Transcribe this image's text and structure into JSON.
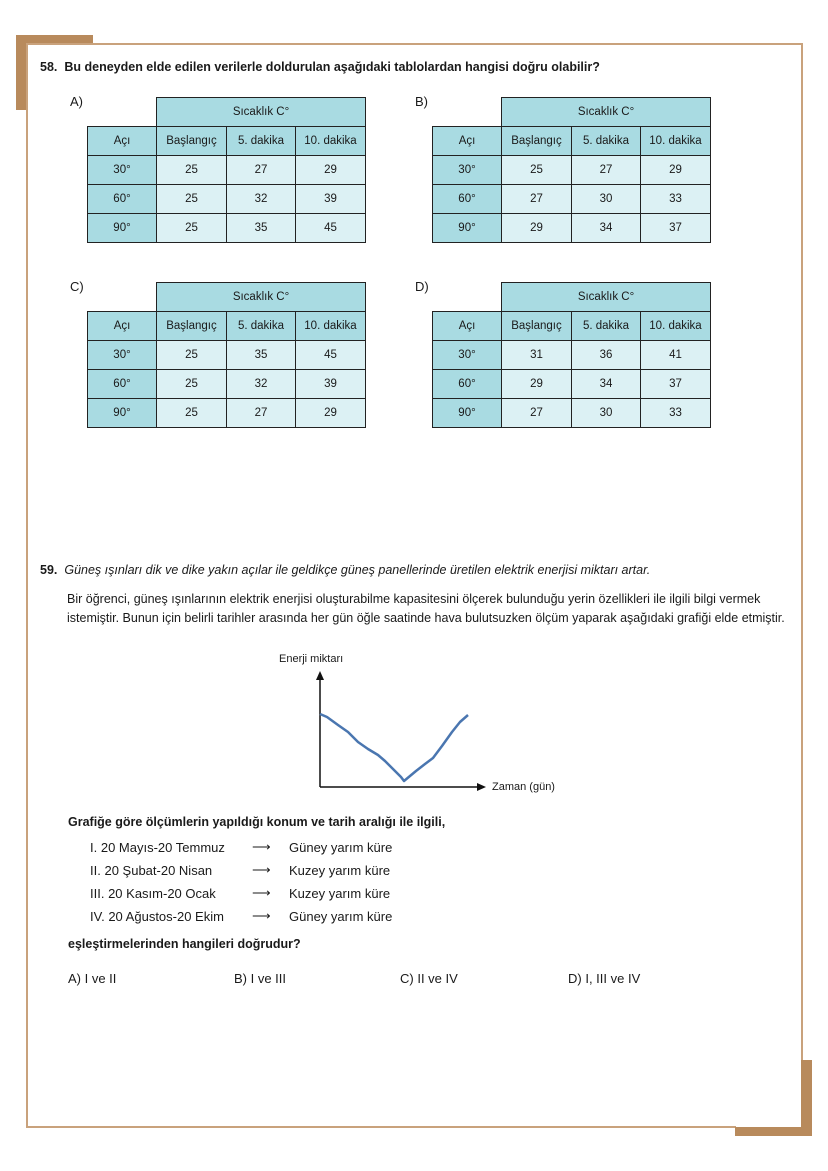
{
  "q58": {
    "number": "58.",
    "text": "Bu deneyden elde edilen verilerle doldurulan aşağıdaki tablolardan hangisi doğru olabilir?",
    "tables": [
      {
        "label": "A)",
        "header": "Sıcaklık C°",
        "cols": [
          "Açı",
          "Başlangıç",
          "5. dakika",
          "10. dakika"
        ],
        "rows": [
          [
            "30°",
            "25",
            "27",
            "29"
          ],
          [
            "60°",
            "25",
            "32",
            "39"
          ],
          [
            "90°",
            "25",
            "35",
            "45"
          ]
        ]
      },
      {
        "label": "B)",
        "header": "Sıcaklık C°",
        "cols": [
          "Açı",
          "Başlangıç",
          "5. dakika",
          "10. dakika"
        ],
        "rows": [
          [
            "30°",
            "25",
            "27",
            "29"
          ],
          [
            "60°",
            "27",
            "30",
            "33"
          ],
          [
            "90°",
            "29",
            "34",
            "37"
          ]
        ]
      },
      {
        "label": "C)",
        "header": "Sıcaklık C°",
        "cols": [
          "Açı",
          "Başlangıç",
          "5. dakika",
          "10. dakika"
        ],
        "rows": [
          [
            "30°",
            "25",
            "35",
            "45"
          ],
          [
            "60°",
            "25",
            "32",
            "39"
          ],
          [
            "90°",
            "25",
            "27",
            "29"
          ]
        ]
      },
      {
        "label": "D)",
        "header": "Sıcaklık C°",
        "cols": [
          "Açı",
          "Başlangıç",
          "5. dakika",
          "10. dakika"
        ],
        "rows": [
          [
            "30°",
            "31",
            "36",
            "41"
          ],
          [
            "60°",
            "29",
            "34",
            "37"
          ],
          [
            "90°",
            "27",
            "30",
            "33"
          ]
        ]
      }
    ]
  },
  "q59": {
    "number": "59.",
    "premise": "Güneş ışınları dik ve dike yakın açılar ile geldikçe güneş panellerinde üretilen elektrik enerjisi miktarı artar.",
    "body": "Bir öğrenci, güneş ışınlarının elektrik enerjisi oluşturabilme kapasitesini ölçerek bulunduğu yerin özellikleri ile ilgili bilgi vermek istemiştir. Bunun için belirli tarihler arasında her gün öğle saatinde hava bulutsuzken ölçüm yaparak aşağıdaki grafiği elde etmiştir.",
    "graph": {
      "ylabel": "Enerji miktarı",
      "xlabel": "Zaman (gün)"
    },
    "lead": "Grafiğe göre ölçümlerin yapıldığı konum ve tarih aralığı ile ilgili,",
    "items": [
      {
        "num": "I.",
        "dates": "20 Mayıs-20 Temmuz",
        "arrow": "⟶",
        "hemisphere": "Güney yarım küre"
      },
      {
        "num": "II.",
        "dates": "20 Şubat-20 Nisan",
        "arrow": "⟶",
        "hemisphere": "Kuzey yarım küre"
      },
      {
        "num": "III.",
        "dates": "20 Kasım-20 Ocak",
        "arrow": "⟶",
        "hemisphere": "Kuzey yarım küre"
      },
      {
        "num": "IV.",
        "dates": "20 Ağustos-20 Ekim",
        "arrow": "⟶",
        "hemisphere": "Güney yarım küre"
      }
    ],
    "question": "eşleştirmelerinden hangileri doğrudur?",
    "options": [
      "A) I ve II",
      "B) I ve III",
      "C) II ve IV",
      "D) I, III ve IV"
    ]
  }
}
